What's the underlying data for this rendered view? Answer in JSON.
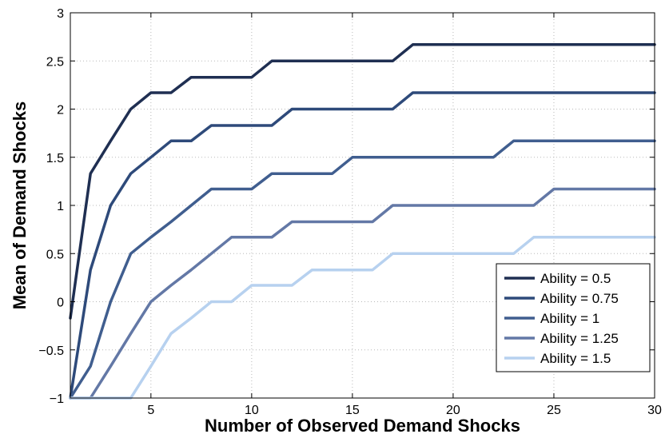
{
  "chart_data": {
    "type": "line",
    "title": "",
    "xlabel": "Number of Observed Demand Shocks",
    "ylabel": "Mean of Demand Shocks",
    "xlim": [
      1,
      30
    ],
    "ylim": [
      -1,
      3
    ],
    "xticks": [
      5,
      10,
      15,
      20,
      25,
      30
    ],
    "yticks": [
      -1,
      -0.5,
      0,
      0.5,
      1,
      1.5,
      2,
      2.5,
      3
    ],
    "ytick_labels": [
      "−1",
      "−0.5",
      "0",
      "0.5",
      "1",
      "1.5",
      "2",
      "2.5",
      "3"
    ],
    "grid": true,
    "legend_position": "bottom-right",
    "series": [
      {
        "name": "Ability = 0.5",
        "color": "#1f2f52",
        "x": [
          1,
          2,
          3,
          4,
          5,
          6,
          7,
          8,
          9,
          10,
          11,
          12,
          13,
          14,
          15,
          16,
          17,
          18,
          19,
          20,
          21,
          22,
          23,
          24,
          25,
          26,
          27,
          28,
          29,
          30
        ],
        "y": [
          -0.17,
          1.33,
          1.67,
          2.0,
          2.17,
          2.17,
          2.33,
          2.33,
          2.33,
          2.33,
          2.5,
          2.5,
          2.5,
          2.5,
          2.5,
          2.5,
          2.5,
          2.67,
          2.67,
          2.67,
          2.67,
          2.67,
          2.67,
          2.67,
          2.67,
          2.67,
          2.67,
          2.67,
          2.67,
          2.67
        ]
      },
      {
        "name": "Ability = 0.75",
        "color": "#2e4a7a",
        "x": [
          1,
          2,
          3,
          4,
          5,
          6,
          7,
          8,
          9,
          10,
          11,
          12,
          13,
          14,
          15,
          16,
          17,
          18,
          19,
          20,
          21,
          22,
          23,
          24,
          25,
          26,
          27,
          28,
          29,
          30
        ],
        "y": [
          -1.0,
          0.33,
          1.0,
          1.33,
          1.5,
          1.67,
          1.67,
          1.83,
          1.83,
          1.83,
          1.83,
          2.0,
          2.0,
          2.0,
          2.0,
          2.0,
          2.0,
          2.17,
          2.17,
          2.17,
          2.17,
          2.17,
          2.17,
          2.17,
          2.17,
          2.17,
          2.17,
          2.17,
          2.17,
          2.17
        ]
      },
      {
        "name": "Ability = 1",
        "color": "#405e8f",
        "x": [
          1,
          2,
          3,
          4,
          5,
          6,
          7,
          8,
          9,
          10,
          11,
          12,
          13,
          14,
          15,
          16,
          17,
          18,
          19,
          20,
          21,
          22,
          23,
          24,
          25,
          26,
          27,
          28,
          29,
          30
        ],
        "y": [
          -1.0,
          -0.67,
          0.0,
          0.5,
          0.67,
          0.83,
          1.0,
          1.17,
          1.17,
          1.17,
          1.33,
          1.33,
          1.33,
          1.33,
          1.5,
          1.5,
          1.5,
          1.5,
          1.5,
          1.5,
          1.5,
          1.5,
          1.67,
          1.67,
          1.67,
          1.67,
          1.67,
          1.67,
          1.67,
          1.67
        ]
      },
      {
        "name": "Ability = 1.25",
        "color": "#6378a6",
        "x": [
          1,
          2,
          3,
          4,
          5,
          6,
          7,
          8,
          9,
          10,
          11,
          12,
          13,
          14,
          15,
          16,
          17,
          18,
          19,
          20,
          21,
          22,
          23,
          24,
          25,
          26,
          27,
          28,
          29,
          30
        ],
        "y": [
          -1.0,
          -1.0,
          -0.67,
          -0.33,
          0.0,
          0.17,
          0.33,
          0.5,
          0.67,
          0.67,
          0.67,
          0.83,
          0.83,
          0.83,
          0.83,
          0.83,
          1.0,
          1.0,
          1.0,
          1.0,
          1.0,
          1.0,
          1.0,
          1.0,
          1.17,
          1.17,
          1.17,
          1.17,
          1.17,
          1.17
        ]
      },
      {
        "name": "Ability = 1.5",
        "color": "#b7d1ef",
        "x": [
          1,
          2,
          3,
          4,
          5,
          6,
          7,
          8,
          9,
          10,
          11,
          12,
          13,
          14,
          15,
          16,
          17,
          18,
          19,
          20,
          21,
          22,
          23,
          24,
          25,
          26,
          27,
          28,
          29,
          30
        ],
        "y": [
          -1.0,
          -1.0,
          -1.0,
          -1.0,
          -0.67,
          -0.33,
          -0.17,
          0.0,
          0.0,
          0.17,
          0.17,
          0.17,
          0.33,
          0.33,
          0.33,
          0.33,
          0.5,
          0.5,
          0.5,
          0.5,
          0.5,
          0.5,
          0.5,
          0.67,
          0.67,
          0.67,
          0.67,
          0.67,
          0.67,
          0.67
        ]
      }
    ]
  }
}
